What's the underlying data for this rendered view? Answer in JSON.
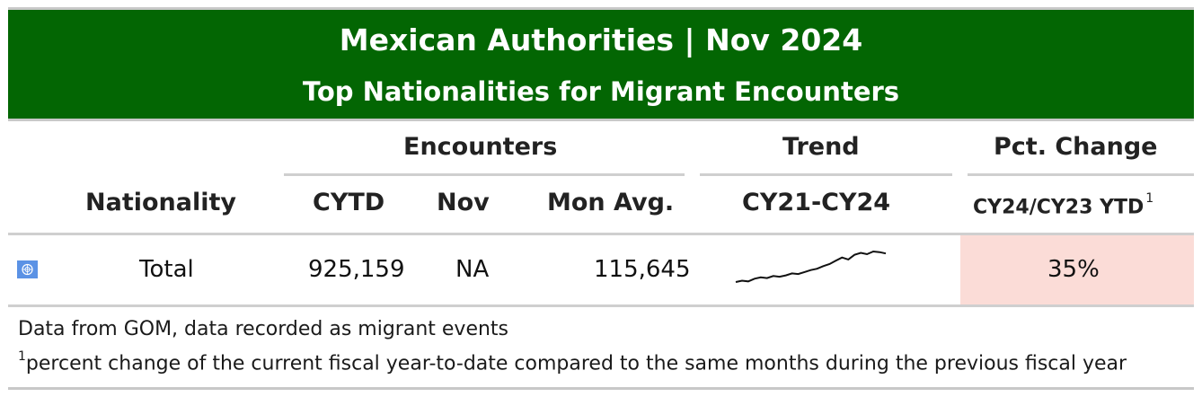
{
  "title": "Mexican Authorities | Nov 2024",
  "subtitle": "Top Nationalities for Migrant Encounters",
  "groups": {
    "encounters": "Encounters",
    "trend": "Trend",
    "pct_change": "Pct. Change"
  },
  "columns": {
    "nationality": "Nationality",
    "cytd": "CYTD",
    "nov": "Nov",
    "mon_avg": "Mon Avg.",
    "trend_range": "CY21-CY24",
    "pct_label": "CY24/CY23 YTD",
    "pct_footnote_mark": "1"
  },
  "rows": [
    {
      "flag_icon": "un-flag-icon",
      "nationality": "Total",
      "cytd": "925,159",
      "nov": "NA",
      "mon_avg": "115,645",
      "pct_change": "35%",
      "pct_color": "#fbdcd7"
    }
  ],
  "footer": {
    "source": "Data from GOM, data recorded as migrant events",
    "note_mark": "1",
    "note": "percent change of the current fiscal year-to-date compared to the same months during the previous fiscal year"
  },
  "colors": {
    "banner": "#036603",
    "highlight": "#fbdcd7"
  },
  "chart_data": {
    "type": "line",
    "series": [
      {
        "values": [
          28,
          30,
          29,
          33,
          35,
          34,
          37,
          36,
          38,
          41,
          40,
          43,
          46,
          48,
          52,
          55,
          60,
          65,
          62,
          69,
          72,
          70,
          74,
          73,
          71
        ]
      }
    ]
  }
}
